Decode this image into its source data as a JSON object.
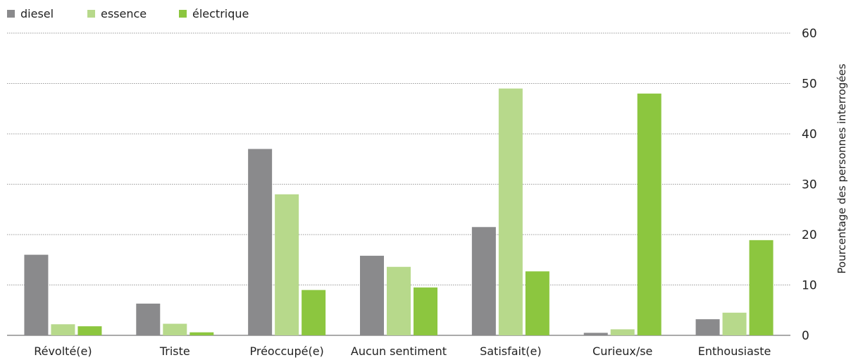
{
  "chart_data": {
    "type": "bar",
    "title": "",
    "xlabel": "",
    "ylabel": "Pourcentage des personnes interrogées",
    "ylim": [
      0,
      60
    ],
    "yticks": [
      0,
      10,
      20,
      30,
      40,
      50,
      60
    ],
    "grid": true,
    "legend_position": "top-left",
    "y_axis_side": "right",
    "categories": [
      "Révolté(e)",
      "Triste",
      "Préoccupé(e)",
      "Aucun sentiment",
      "Satisfait(e)",
      "Curieux/se",
      "Enthousiaste"
    ],
    "series": [
      {
        "name": "diesel",
        "color": "#8a8a8c",
        "values": [
          16,
          6.3,
          37,
          15.8,
          21.5,
          0.5,
          3.2
        ]
      },
      {
        "name": "essence",
        "color": "#b7d98b",
        "values": [
          2.2,
          2.3,
          28,
          13.6,
          49,
          1.2,
          4.5
        ]
      },
      {
        "name": "électrique",
        "color": "#8cc63f",
        "values": [
          1.8,
          0.6,
          9,
          9.5,
          12.7,
          48,
          18.9
        ]
      }
    ]
  }
}
